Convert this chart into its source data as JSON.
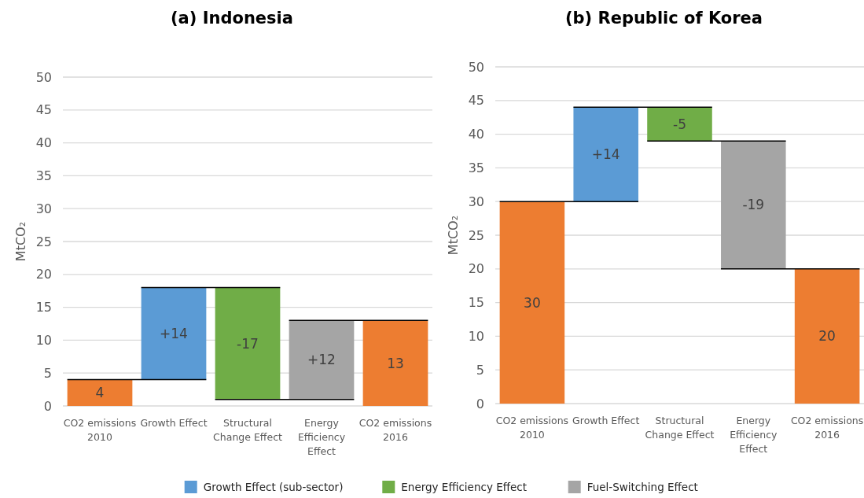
{
  "chart_data": [
    {
      "type": "bar",
      "title": "(a) Indonesia",
      "ylabel": "MtCO₂",
      "categories": [
        "CO2 emissions 2010",
        "Growth Effect",
        "Structural Change Effect",
        "Energy Efficiency Effect",
        "CO2 emissions 2016"
      ],
      "series": [
        {
          "color": "#ed7d31",
          "values": [
            4,
            null,
            null,
            null,
            13
          ],
          "base": [
            0,
            null,
            null,
            null,
            0
          ],
          "value_labels": [
            "4",
            null,
            null,
            null,
            "13"
          ]
        },
        {
          "color": "#5b9bd5",
          "values": [
            null,
            14,
            null,
            null,
            null
          ],
          "base": [
            null,
            4,
            null,
            null,
            null
          ],
          "value_labels": [
            null,
            "+14",
            null,
            null,
            null
          ]
        },
        {
          "color": "#70ad47",
          "values": [
            null,
            null,
            -17,
            null,
            null
          ],
          "base": [
            null,
            null,
            18,
            null,
            null
          ],
          "value_labels": [
            null,
            null,
            "-17",
            null,
            null
          ]
        },
        {
          "color": "#a5a5a5",
          "values": [
            null,
            null,
            null,
            12,
            null
          ],
          "base": [
            null,
            null,
            null,
            1,
            null
          ],
          "value_labels": [
            null,
            null,
            null,
            "+12",
            null
          ]
        }
      ],
      "ylim": [
        0,
        50
      ],
      "yticks": [
        0,
        5,
        10,
        15,
        20,
        25,
        30,
        35,
        40,
        45,
        50
      ],
      "grid": "y"
    },
    {
      "type": "bar",
      "title": "(b) Republic of Korea",
      "ylabel": "MtCO₂",
      "categories": [
        "CO2 emissions 2010",
        "Growth Effect",
        "Structural Change Effect",
        "Energy Efficiency Effect",
        "CO2 emissions 2016"
      ],
      "series": [
        {
          "color": "#ed7d31",
          "values": [
            30,
            null,
            null,
            null,
            20
          ],
          "base": [
            0,
            null,
            null,
            null,
            0
          ],
          "value_labels": [
            "30",
            null,
            null,
            null,
            "20"
          ]
        },
        {
          "name": "Growth Effect (sub-sector)",
          "color": "#5b9bd5",
          "values": [
            null,
            14,
            null,
            null,
            null
          ],
          "base": [
            null,
            30,
            null,
            null,
            null
          ],
          "value_labels": [
            null,
            "+14",
            null,
            null,
            null
          ]
        },
        {
          "name": "Energy Efficiency Effect",
          "color": "#70ad47",
          "values": [
            null,
            null,
            -5,
            null,
            null
          ],
          "base": [
            null,
            null,
            44,
            null,
            null
          ],
          "value_labels": [
            null,
            null,
            "-5",
            null,
            null
          ]
        },
        {
          "name": "Fuel-Switching Effect",
          "color": "#a5a5a5",
          "values": [
            null,
            null,
            null,
            -19,
            null
          ],
          "base": [
            null,
            null,
            null,
            39,
            null
          ],
          "value_labels": [
            null,
            null,
            null,
            "-19",
            null
          ]
        }
      ],
      "ylim": [
        0,
        50
      ],
      "yticks": [
        0,
        5,
        10,
        15,
        20,
        25,
        30,
        35,
        40,
        45,
        50
      ],
      "grid": "y",
      "legend": "bottom"
    }
  ]
}
